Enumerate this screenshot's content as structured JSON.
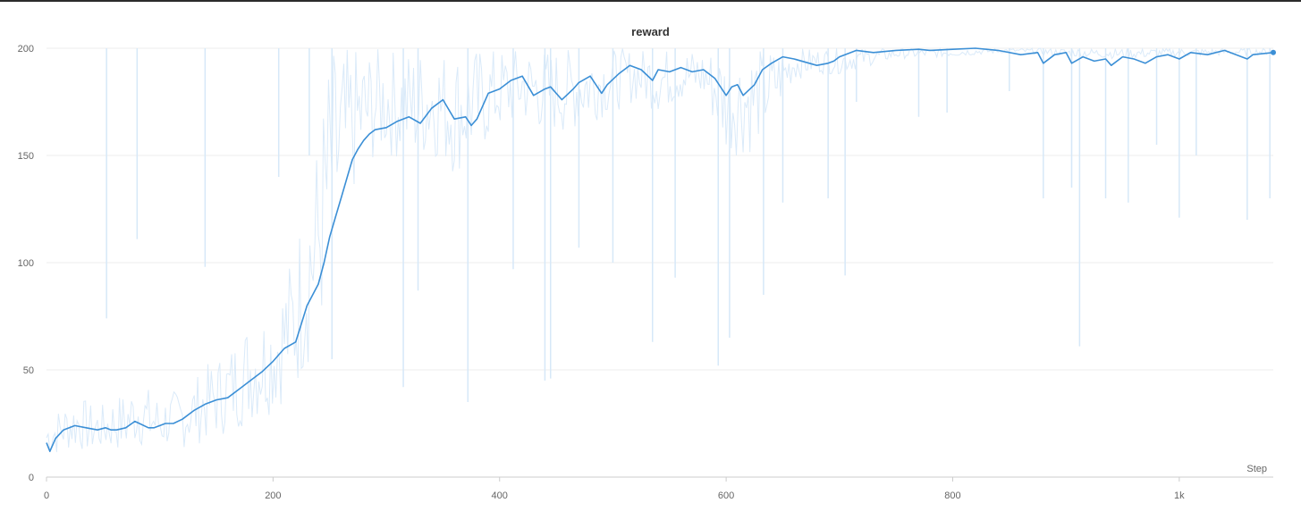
{
  "chart_data": {
    "type": "line",
    "title": "reward",
    "xlabel": "Step",
    "ylabel": "",
    "xlim": [
      0,
      1083
    ],
    "ylim": [
      0,
      200
    ],
    "x_ticks": [
      0,
      200,
      400,
      600,
      800,
      1000
    ],
    "x_tick_labels": [
      "0",
      "200",
      "400",
      "600",
      "800",
      "1k"
    ],
    "y_ticks": [
      0,
      50,
      100,
      150,
      200
    ],
    "grid": true,
    "legend": "none",
    "colors": {
      "smoothed": "#3b8fd6",
      "raw": "#d6e8f8"
    },
    "smoothed": {
      "x": [
        0,
        3,
        8,
        15,
        25,
        35,
        45,
        52,
        57,
        62,
        70,
        78,
        82,
        90,
        95,
        100,
        105,
        112,
        120,
        130,
        140,
        150,
        160,
        170,
        180,
        190,
        200,
        210,
        220,
        230,
        240,
        245,
        250,
        255,
        260,
        265,
        270,
        275,
        280,
        285,
        290,
        300,
        310,
        320,
        330,
        340,
        350,
        360,
        370,
        375,
        380,
        390,
        400,
        410,
        420,
        430,
        440,
        445,
        455,
        465,
        470,
        480,
        490,
        495,
        505,
        515,
        525,
        535,
        540,
        550,
        560,
        570,
        580,
        590,
        600,
        605,
        610,
        615,
        625,
        632,
        640,
        650,
        660,
        680,
        690,
        695,
        700,
        705,
        715,
        730,
        750,
        770,
        780,
        800,
        820,
        840,
        860,
        875,
        880,
        890,
        900,
        905,
        915,
        925,
        935,
        940,
        950,
        960,
        970,
        980,
        990,
        1000,
        1010,
        1025,
        1040,
        1060,
        1065,
        1083
      ],
      "y": [
        16,
        12,
        18,
        22,
        24,
        23,
        22,
        23,
        22,
        22,
        23,
        26,
        25,
        23,
        23,
        24,
        25,
        25,
        27,
        31,
        34,
        36,
        37,
        41,
        45,
        49,
        54,
        60,
        63,
        80,
        90,
        100,
        112,
        121,
        130,
        139,
        148,
        153,
        157,
        160,
        162,
        163,
        166,
        168,
        165,
        172,
        176,
        167,
        168,
        164,
        167,
        179,
        181,
        185,
        187,
        178,
        181,
        182,
        176,
        181,
        184,
        187,
        179,
        183,
        188,
        192,
        190,
        185,
        190,
        189,
        191,
        189,
        190,
        186,
        178,
        182,
        183,
        178,
        183,
        190,
        193,
        196,
        195,
        192,
        193,
        194,
        196,
        197,
        199,
        198,
        199,
        199.5,
        199,
        199.5,
        200,
        199,
        197,
        198,
        193,
        197,
        198,
        193,
        196,
        194,
        195,
        192,
        196,
        195,
        193,
        196,
        197,
        195,
        198,
        197,
        199,
        195,
        197,
        198
      ]
    },
    "raw_range": {
      "x": [
        0,
        10,
        20,
        30,
        40,
        50,
        60,
        70,
        80,
        90,
        100,
        110,
        120,
        130,
        140,
        150,
        160,
        170,
        180,
        190,
        200,
        210,
        220,
        230,
        240,
        250,
        260,
        270,
        280,
        290,
        300,
        320,
        340,
        360,
        380,
        400,
        420,
        440,
        460,
        480,
        500,
        520,
        540,
        560,
        580,
        600,
        620,
        640,
        660,
        680,
        700,
        750,
        800,
        850,
        900,
        950,
        1000,
        1083
      ],
      "low": [
        9,
        10,
        12,
        12,
        11,
        12,
        12,
        11,
        15,
        12,
        12,
        14,
        13,
        15,
        16,
        18,
        20,
        22,
        25,
        27,
        30,
        35,
        38,
        50,
        60,
        85,
        110,
        130,
        140,
        148,
        150,
        145,
        150,
        140,
        150,
        160,
        165,
        160,
        160,
        165,
        170,
        175,
        170,
        175,
        175,
        150,
        150,
        165,
        185,
        188,
        188,
        195,
        196,
        198,
        196,
        195,
        196,
        197
      ],
      "high": [
        28,
        32,
        36,
        38,
        34,
        34,
        38,
        40,
        45,
        42,
        38,
        40,
        42,
        46,
        52,
        56,
        60,
        68,
        75,
        78,
        82,
        95,
        110,
        140,
        160,
        200,
        200,
        200,
        200,
        200,
        200,
        200,
        200,
        200,
        200,
        200,
        200,
        200,
        200,
        200,
        200,
        200,
        200,
        200,
        200,
        200,
        200,
        200,
        200,
        200,
        200,
        200,
        200,
        200,
        200,
        200,
        200,
        200
      ]
    },
    "raw_spikes": [
      {
        "x": 53,
        "y": 74
      },
      {
        "x": 80,
        "y": 111
      },
      {
        "x": 140,
        "y": 98
      },
      {
        "x": 205,
        "y": 140
      },
      {
        "x": 232,
        "y": 150
      },
      {
        "x": 252,
        "y": 55
      },
      {
        "x": 315,
        "y": 42
      },
      {
        "x": 328,
        "y": 87
      },
      {
        "x": 372,
        "y": 35
      },
      {
        "x": 412,
        "y": 97
      },
      {
        "x": 440,
        "y": 45
      },
      {
        "x": 445,
        "y": 46
      },
      {
        "x": 470,
        "y": 107
      },
      {
        "x": 500,
        "y": 100
      },
      {
        "x": 535,
        "y": 63
      },
      {
        "x": 555,
        "y": 93
      },
      {
        "x": 593,
        "y": 52
      },
      {
        "x": 603,
        "y": 65
      },
      {
        "x": 633,
        "y": 85
      },
      {
        "x": 650,
        "y": 128
      },
      {
        "x": 690,
        "y": 130
      },
      {
        "x": 705,
        "y": 94
      },
      {
        "x": 715,
        "y": 175
      },
      {
        "x": 770,
        "y": 168
      },
      {
        "x": 795,
        "y": 170
      },
      {
        "x": 850,
        "y": 180
      },
      {
        "x": 880,
        "y": 130
      },
      {
        "x": 905,
        "y": 135
      },
      {
        "x": 912,
        "y": 61
      },
      {
        "x": 935,
        "y": 130
      },
      {
        "x": 955,
        "y": 128
      },
      {
        "x": 980,
        "y": 155
      },
      {
        "x": 1000,
        "y": 121
      },
      {
        "x": 1015,
        "y": 150
      },
      {
        "x": 1060,
        "y": 120
      },
      {
        "x": 1080,
        "y": 130
      }
    ],
    "last_point": {
      "x": 1083,
      "y": 198
    }
  }
}
